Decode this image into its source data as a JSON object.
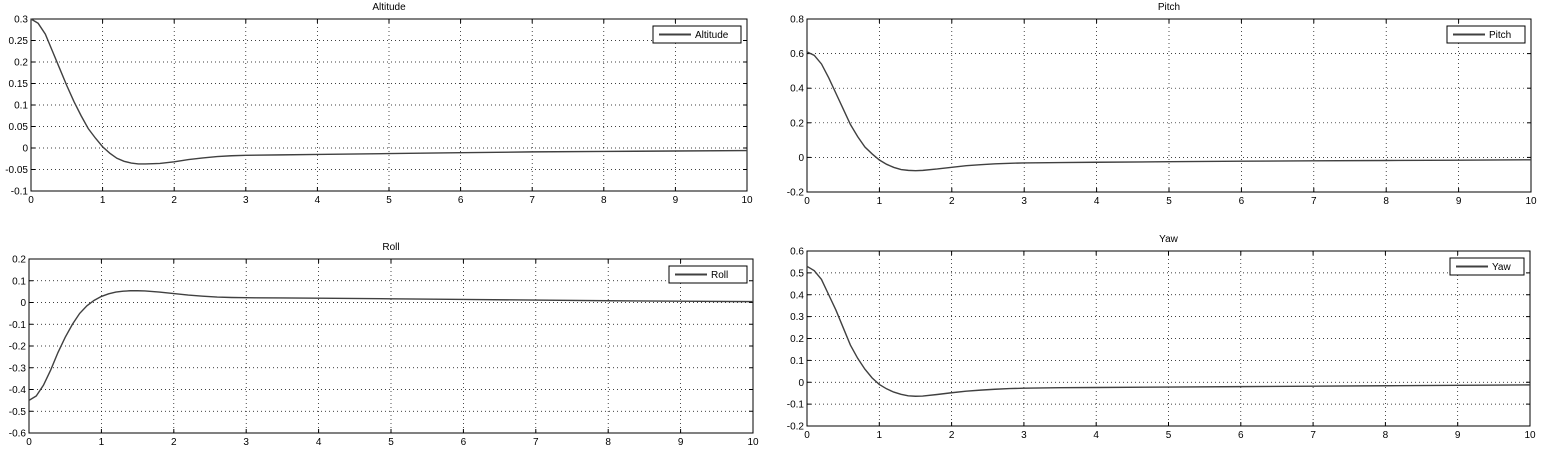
{
  "chart_data": [
    {
      "type": "line",
      "title": "Altitude",
      "xlim": [
        0,
        10
      ],
      "ylim": [
        -0.1,
        0.3
      ],
      "xticks": [
        "0",
        "1",
        "2",
        "3",
        "4",
        "5",
        "6",
        "7",
        "8",
        "9",
        "10"
      ],
      "yticks": [
        "-0.1",
        "-0.05",
        "0",
        "0.05",
        "0.1",
        "0.15",
        "0.2",
        "0.25",
        "0.3"
      ],
      "grid": true,
      "legend_position": "top-right",
      "series": [
        {
          "name": "Altitude",
          "color": "#404040",
          "x": [
            0,
            0.1,
            0.2,
            0.3,
            0.4,
            0.5,
            0.6,
            0.7,
            0.8,
            0.9,
            1.0,
            1.1,
            1.2,
            1.3,
            1.4,
            1.5,
            1.6,
            1.8,
            2.0,
            2.2,
            2.4,
            2.6,
            2.8,
            3.0,
            3.5,
            4.0,
            5.0,
            6.0,
            7.0,
            8.0,
            9.0,
            10.0
          ],
          "y": [
            0.3,
            0.29,
            0.265,
            0.225,
            0.185,
            0.145,
            0.108,
            0.075,
            0.045,
            0.023,
            0.003,
            -0.012,
            -0.024,
            -0.031,
            -0.035,
            -0.037,
            -0.037,
            -0.036,
            -0.032,
            -0.027,
            -0.023,
            -0.02,
            -0.018,
            -0.017,
            -0.016,
            -0.015,
            -0.013,
            -0.011,
            -0.009,
            -0.008,
            -0.007,
            -0.006
          ]
        }
      ]
    },
    {
      "type": "line",
      "title": "Pitch",
      "xlim": [
        0,
        10
      ],
      "ylim": [
        -0.2,
        0.8
      ],
      "xticks": [
        "0",
        "1",
        "2",
        "3",
        "4",
        "5",
        "6",
        "7",
        "8",
        "9",
        "10"
      ],
      "yticks": [
        "-0.2",
        "0",
        "0.2",
        "0.4",
        "0.6",
        "0.8"
      ],
      "grid": true,
      "legend_position": "top-right",
      "series": [
        {
          "name": "Pitch",
          "color": "#404040",
          "x": [
            0,
            0.1,
            0.2,
            0.3,
            0.4,
            0.5,
            0.6,
            0.7,
            0.8,
            0.9,
            1.0,
            1.1,
            1.2,
            1.3,
            1.4,
            1.5,
            1.6,
            1.8,
            2.0,
            2.2,
            2.4,
            2.6,
            2.8,
            3.0,
            3.5,
            4.0,
            5.0,
            6.0,
            7.0,
            8.0,
            9.0,
            10.0
          ],
          "y": [
            0.61,
            0.59,
            0.54,
            0.46,
            0.37,
            0.28,
            0.19,
            0.12,
            0.06,
            0.02,
            -0.015,
            -0.04,
            -0.058,
            -0.07,
            -0.075,
            -0.077,
            -0.075,
            -0.067,
            -0.057,
            -0.048,
            -0.042,
            -0.037,
            -0.034,
            -0.032,
            -0.03,
            -0.028,
            -0.025,
            -0.022,
            -0.02,
            -0.018,
            -0.016,
            -0.014
          ]
        }
      ]
    },
    {
      "type": "line",
      "title": "Roll",
      "xlim": [
        0,
        10
      ],
      "ylim": [
        -0.6,
        0.2
      ],
      "xticks": [
        "0",
        "1",
        "2",
        "3",
        "4",
        "5",
        "6",
        "7",
        "8",
        "9",
        "10"
      ],
      "yticks": [
        "-0.6",
        "-0.5",
        "-0.4",
        "-0.3",
        "-0.2",
        "-0.1",
        "0",
        "0.1",
        "0.2"
      ],
      "grid": true,
      "legend_position": "top-right",
      "series": [
        {
          "name": "Roll",
          "color": "#404040",
          "x": [
            0,
            0.1,
            0.2,
            0.3,
            0.4,
            0.5,
            0.6,
            0.7,
            0.8,
            0.9,
            1.0,
            1.1,
            1.2,
            1.3,
            1.4,
            1.5,
            1.6,
            1.8,
            2.0,
            2.2,
            2.4,
            2.6,
            2.8,
            3.0,
            3.5,
            4.0,
            5.0,
            6.0,
            7.0,
            8.0,
            9.0,
            10.0
          ],
          "y": [
            -0.45,
            -0.43,
            -0.38,
            -0.31,
            -0.23,
            -0.16,
            -0.1,
            -0.05,
            -0.015,
            0.01,
            0.028,
            0.04,
            0.048,
            0.052,
            0.054,
            0.054,
            0.053,
            0.048,
            0.041,
            0.034,
            0.029,
            0.025,
            0.023,
            0.022,
            0.021,
            0.02,
            0.017,
            0.014,
            0.011,
            0.008,
            0.006,
            0.004
          ]
        }
      ]
    },
    {
      "type": "line",
      "title": "Yaw",
      "xlim": [
        0,
        10
      ],
      "ylim": [
        -0.2,
        0.6
      ],
      "xticks": [
        "0",
        "1",
        "2",
        "3",
        "4",
        "5",
        "6",
        "7",
        "8",
        "9",
        "10"
      ],
      "yticks": [
        "-0.2",
        "-0.1",
        "0",
        "0.1",
        "0.2",
        "0.3",
        "0.4",
        "0.5",
        "0.6"
      ],
      "grid": true,
      "legend_position": "top-right",
      "series": [
        {
          "name": "Yaw",
          "color": "#404040",
          "x": [
            0,
            0.1,
            0.2,
            0.3,
            0.4,
            0.5,
            0.6,
            0.7,
            0.8,
            0.9,
            1.0,
            1.1,
            1.2,
            1.3,
            1.4,
            1.5,
            1.6,
            1.8,
            2.0,
            2.2,
            2.4,
            2.6,
            2.8,
            3.0,
            3.5,
            4.0,
            5.0,
            6.0,
            7.0,
            8.0,
            9.0,
            10.0
          ],
          "y": [
            0.53,
            0.51,
            0.47,
            0.4,
            0.33,
            0.25,
            0.17,
            0.11,
            0.06,
            0.02,
            -0.01,
            -0.03,
            -0.045,
            -0.055,
            -0.062,
            -0.064,
            -0.063,
            -0.056,
            -0.048,
            -0.041,
            -0.036,
            -0.032,
            -0.029,
            -0.027,
            -0.025,
            -0.024,
            -0.022,
            -0.02,
            -0.018,
            -0.016,
            -0.014,
            -0.012
          ]
        }
      ]
    }
  ]
}
